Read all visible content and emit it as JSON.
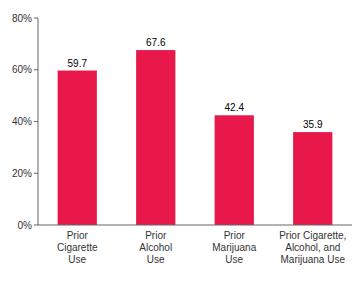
{
  "chart_data": {
    "type": "bar",
    "categories": [
      "Prior\nCigarette\nUse",
      "Prior\nAlcohol\nUse",
      "Prior\nMarijuana\nUse",
      "Prior Cigarette,\nAlcohol, and\nMarijuana Use"
    ],
    "values": [
      59.7,
      67.6,
      42.4,
      35.9
    ],
    "color": "#E8184A",
    "ylim": [
      0,
      80
    ],
    "yticks": [
      {
        "value": 0,
        "label": "0%"
      },
      {
        "value": 20,
        "label": "20%"
      },
      {
        "value": 40,
        "label": "40%"
      },
      {
        "value": 60,
        "label": "60%"
      },
      {
        "value": 80,
        "label": "80%"
      }
    ],
    "data_labels": true,
    "grid": false
  }
}
